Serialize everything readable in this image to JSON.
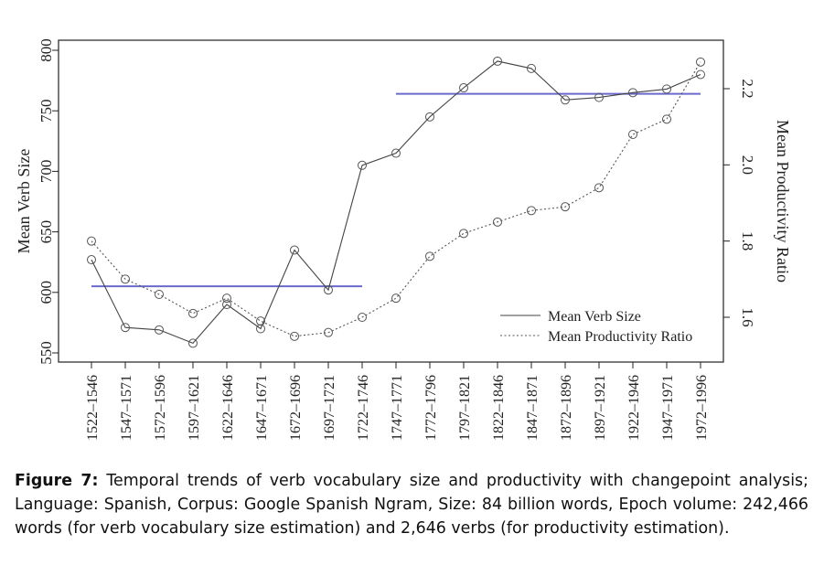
{
  "chart_data": {
    "type": "line",
    "categories": [
      "1522–1546",
      "1547–1571",
      "1572–1596",
      "1597–1621",
      "1622–1646",
      "1647–1671",
      "1672–1696",
      "1697–1721",
      "1722–1746",
      "1747–1771",
      "1772–1796",
      "1797–1821",
      "1822–1846",
      "1847–1871",
      "1872–1896",
      "1897–1921",
      "1922–1946",
      "1947–1971",
      "1972–1996"
    ],
    "ylabel": "Mean Verb Size",
    "y2label": "Mean Productivity Ratio",
    "ylim": [
      550,
      800
    ],
    "y2lim": [
      1.53,
      2.33
    ],
    "yticks": [
      550,
      600,
      650,
      700,
      750,
      800
    ],
    "y2ticks": [
      1.6,
      1.8,
      2.0,
      2.2
    ],
    "y2tick_labels": [
      "1.6",
      "1.8",
      "2.0",
      "2.2"
    ],
    "grid": false,
    "legend_position": "bottom-right",
    "series": [
      {
        "name": "Mean Verb Size",
        "axis": "left",
        "style": "solid",
        "values": [
          627,
          571,
          569,
          558,
          590,
          570,
          635,
          602,
          705,
          715,
          745,
          769,
          791,
          785,
          759,
          761,
          765,
          768,
          780
        ]
      },
      {
        "name": "Mean Productivity Ratio",
        "axis": "right",
        "style": "dotted",
        "values": [
          1.8,
          1.7,
          1.66,
          1.61,
          1.65,
          1.59,
          1.55,
          1.56,
          1.6,
          1.65,
          1.76,
          1.82,
          1.85,
          1.88,
          1.89,
          1.94,
          2.08,
          2.12,
          2.27
        ]
      }
    ],
    "changepoint_segments": [
      {
        "from": "1522–1546",
        "to": "1722–1746",
        "value": 605,
        "color": "#6a6acd"
      },
      {
        "from": "1747–1771",
        "to": "1972–1996",
        "value": 764,
        "color": "#6a6acd"
      }
    ]
  },
  "caption": {
    "label": "Figure 7:",
    "text": " Temporal trends of verb vocabulary size and productivity with changepoint analysis; Language: Spanish, Corpus: Google Spanish Ngram, Size: 84 billion words, Epoch volume: 242,466 words (for verb vocabulary size estimation) and 2,646 verbs (for productivity estimation)."
  }
}
